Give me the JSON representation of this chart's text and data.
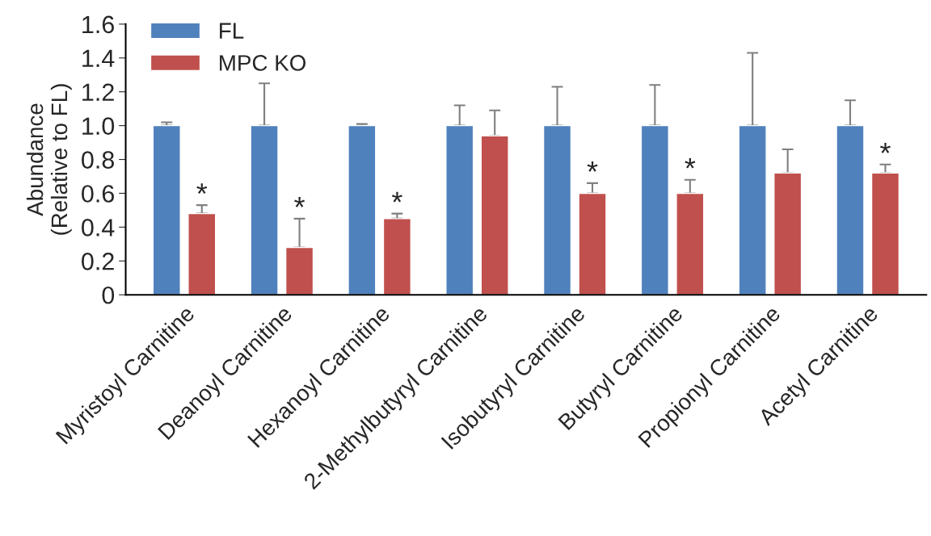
{
  "chart_data": {
    "type": "bar",
    "ylabel": "Abundance\n(Relative to FL)",
    "categories": [
      "Myristoyl Carnitine",
      "Deanoyl Carnitine",
      "Hexanoyl Carnitine",
      "2-Methylbutyryl Carnitine",
      "Isobutyryl Carnitine",
      "Butyryl Carnitine",
      "Propionyl Carnitine",
      "Acetyl Carnitine"
    ],
    "series": [
      {
        "name": "FL",
        "color": "#4f81bd",
        "values": [
          1.0,
          1.0,
          1.0,
          1.0,
          1.0,
          1.0,
          1.0,
          1.0
        ],
        "errors": [
          [
            1.0,
            1.02
          ],
          [
            1.0,
            1.25
          ],
          [
            1.0,
            1.01
          ],
          [
            1.0,
            1.12
          ],
          [
            1.0,
            1.23
          ],
          [
            1.0,
            1.24
          ],
          [
            1.0,
            1.43
          ],
          [
            1.0,
            1.15
          ]
        ]
      },
      {
        "name": "MPC KO",
        "color": "#c0504d",
        "values": [
          0.48,
          0.28,
          0.45,
          0.94,
          0.6,
          0.6,
          0.72,
          0.72
        ],
        "errors": [
          [
            0.48,
            0.53
          ],
          [
            0.28,
            0.45
          ],
          [
            0.45,
            0.48
          ],
          [
            0.94,
            1.09
          ],
          [
            0.6,
            0.66
          ],
          [
            0.6,
            0.68
          ],
          [
            0.72,
            0.86
          ],
          [
            0.72,
            0.77
          ]
        ],
        "value_labels": [
          "*",
          "*",
          "*",
          null,
          "*",
          "*",
          null,
          "*"
        ]
      }
    ],
    "ylim": [
      0,
      1.6
    ],
    "yticks": [
      {
        "value": 0,
        "label": "0"
      },
      {
        "value": 0.2,
        "label": "0.2"
      },
      {
        "value": 0.4,
        "label": "0.4"
      },
      {
        "value": 0.6,
        "label": "0.6"
      },
      {
        "value": 0.8,
        "label": "0.8"
      },
      {
        "value": 1.0,
        "label": "1.0"
      },
      {
        "value": 1.2,
        "label": "1.2"
      },
      {
        "value": 1.4,
        "label": "1.4"
      },
      {
        "value": 1.6,
        "label": "1.6"
      }
    ],
    "legend": "top left",
    "grid": false
  }
}
